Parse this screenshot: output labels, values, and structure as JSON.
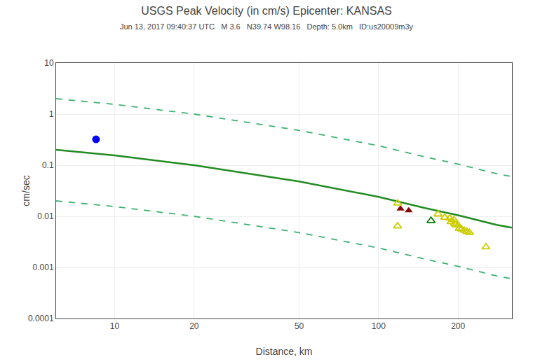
{
  "chart_data": {
    "type": "scatter",
    "title": "USGS Peak Velocity (in cm/s) Epicenter: KANSAS",
    "subtitle": "Jun 13, 2017 09:40:37 UTC   M 3.6   N39.74 W98.16   Depth: 5.0km   ID:us20009m3y",
    "x_label": "Distance, km",
    "y_label": "cm/sec",
    "log": true,
    "grid": true,
    "xlim": [
      6,
      320
    ],
    "xticks": [
      10,
      20,
      50,
      100,
      200
    ],
    "ylim": [
      0.0001,
      10
    ],
    "yticks": [
      0.0001,
      0.001,
      0.01,
      0.1,
      1,
      10
    ],
    "series": [
      {
        "type": "line",
        "line_style": "solid",
        "color": "#228B22",
        "x": [
          6,
          10,
          20,
          50,
          100,
          150,
          200,
          280,
          320
        ],
        "values": [
          0.2,
          0.155,
          0.1,
          0.048,
          0.024,
          0.0145,
          0.0105,
          0.0068,
          0.006
        ]
      },
      {
        "type": "line",
        "line_style": "dashed",
        "color": "#3CB371",
        "x": [
          6,
          10,
          20,
          50,
          100,
          150,
          200,
          280,
          320
        ],
        "values": [
          2.0,
          1.55,
          1.0,
          0.48,
          0.24,
          0.145,
          0.105,
          0.068,
          0.06
        ]
      },
      {
        "type": "line",
        "line_style": "dashed",
        "color": "#3CB371",
        "x": [
          6,
          10,
          20,
          50,
          100,
          150,
          200,
          280,
          320
        ],
        "values": [
          0.02,
          0.0155,
          0.01,
          0.0048,
          0.0024,
          0.00145,
          0.00105,
          0.00068,
          0.0006
        ]
      },
      {
        "type": "scatter",
        "marker": "circle",
        "color": "blue",
        "x": [
          8.5
        ],
        "values": [
          0.32
        ]
      },
      {
        "type": "scatter",
        "marker": "triangle",
        "color": "#8B0000",
        "x": [
          121,
          130
        ],
        "values": [
          0.014,
          0.013
        ]
      },
      {
        "type": "scatter",
        "marker": "open_triangle",
        "color": "green",
        "x": [
          158
        ],
        "values": [
          0.0082
        ]
      },
      {
        "type": "scatter",
        "marker": "open_triangle",
        "color": "#CCCC00",
        "x": [
          118,
          118,
          168,
          178,
          186,
          188,
          193,
          194,
          196,
          200,
          202,
          206,
          211,
          216,
          221,
          255
        ],
        "values": [
          0.018,
          0.0064,
          0.011,
          0.0095,
          0.0092,
          0.0078,
          0.0085,
          0.0072,
          0.0068,
          0.0067,
          0.0058,
          0.0056,
          0.0053,
          0.005,
          0.0048,
          0.0025
        ]
      }
    ]
  }
}
